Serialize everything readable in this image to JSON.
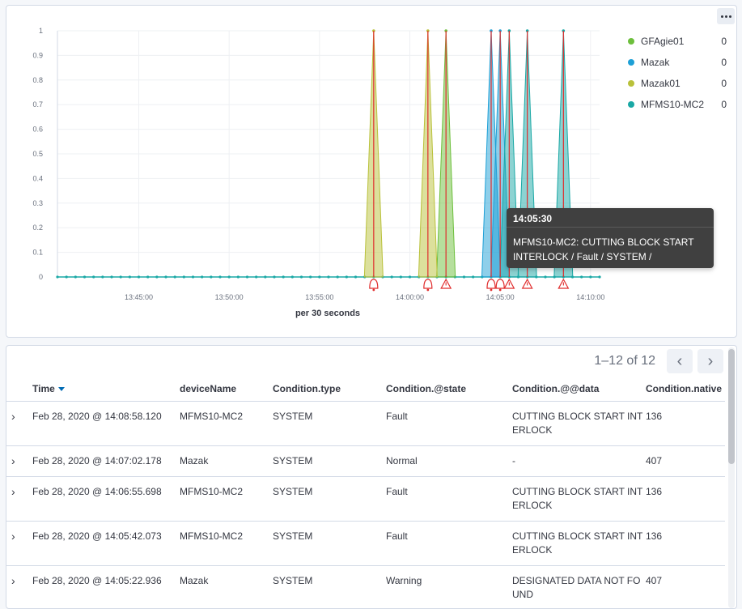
{
  "chart_data": {
    "type": "area",
    "xlabel": "per 30 seconds",
    "ylabel": "",
    "ylim": [
      0,
      1
    ],
    "y_ticks": [
      "1",
      "0.9",
      "0.8",
      "0.7",
      "0.6",
      "0.5",
      "0.4",
      "0.3",
      "0.2",
      "0.1",
      "0"
    ],
    "x_ticks": [
      "13:45:00",
      "13:50:00",
      "13:55:00",
      "14:00:00",
      "14:05:00",
      "14:10:00"
    ],
    "x_range": [
      "13:40:30",
      "14:10:30"
    ],
    "grid": true,
    "legend_placement": "right",
    "series": [
      {
        "name": "GFAgie01",
        "color": "#6dbf3c",
        "values": [
          {
            "x": "14:02:00",
            "y": 1
          }
        ]
      },
      {
        "name": "Mazak",
        "color": "#1ea0d6",
        "values": [
          {
            "x": "14:04:30",
            "y": 1
          },
          {
            "x": "14:05:00",
            "y": 1
          }
        ]
      },
      {
        "name": "Mazak01",
        "color": "#b9c13a",
        "values": [
          {
            "x": "13:58:00",
            "y": 1
          },
          {
            "x": "14:01:00",
            "y": 1
          }
        ]
      },
      {
        "name": "MFMS10-MC2",
        "color": "#1aa8a5",
        "values": [
          {
            "x": "14:05:30",
            "y": 1
          },
          {
            "x": "14:06:30",
            "y": 1
          },
          {
            "x": "14:08:30",
            "y": 1
          }
        ]
      }
    ],
    "annotations": [
      {
        "x": "13:58:00",
        "icon": "bell-icon",
        "color": "#e02c2c"
      },
      {
        "x": "14:01:00",
        "icon": "bell-icon",
        "color": "#e02c2c"
      },
      {
        "x": "14:02:00",
        "icon": "warning-icon",
        "color": "#e02c2c"
      },
      {
        "x": "14:04:30",
        "icon": "bell-icon",
        "color": "#e02c2c"
      },
      {
        "x": "14:05:00",
        "icon": "bell-icon",
        "color": "#e02c2c"
      },
      {
        "x": "14:05:30",
        "icon": "warning-icon",
        "color": "#e02c2c"
      },
      {
        "x": "14:06:30",
        "icon": "warning-icon",
        "color": "#e02c2c"
      },
      {
        "x": "14:08:30",
        "icon": "warning-icon",
        "color": "#e02c2c"
      }
    ]
  },
  "legend": [
    {
      "name": "GFAgie01",
      "value": "0",
      "color": "#6dbf3c"
    },
    {
      "name": "Mazak",
      "value": "0",
      "color": "#1ea0d6"
    },
    {
      "name": "Mazak01",
      "value": "0",
      "color": "#b9c13a"
    },
    {
      "name": "MFMS10-MC2",
      "value": "0",
      "color": "#1aa8a5"
    }
  ],
  "tooltip": {
    "time": "14:05:30",
    "line1": "MFMS10-MC2: CUTTING BLOCK START",
    "line2": "INTERLOCK / Fault / SYSTEM /"
  },
  "pager": {
    "text": "1–12 of 12",
    "prev_icon": "chevron-left-icon",
    "next_icon": "chevron-right-icon"
  },
  "table": {
    "columns": [
      "Time",
      "deviceName",
      "Condition.type",
      "Condition.@state",
      "Condition.@@data",
      "Condition.native"
    ],
    "sort_icon": "sort-desc-icon",
    "rows": [
      {
        "time": "Feb 28, 2020 @ 14:08:58.120",
        "device": "MFMS10-MC2",
        "type": "SYSTEM",
        "state": "Fault",
        "data": "CUTTING BLOCK START INTERLOCK",
        "native": "136"
      },
      {
        "time": "Feb 28, 2020 @ 14:07:02.178",
        "device": "Mazak",
        "type": "SYSTEM",
        "state": "Normal",
        "data": "-",
        "native": "407"
      },
      {
        "time": "Feb 28, 2020 @ 14:06:55.698",
        "device": "MFMS10-MC2",
        "type": "SYSTEM",
        "state": "Fault",
        "data": "CUTTING BLOCK START INTERLOCK",
        "native": "136"
      },
      {
        "time": "Feb 28, 2020 @ 14:05:42.073",
        "device": "MFMS10-MC2",
        "type": "SYSTEM",
        "state": "Fault",
        "data": "CUTTING BLOCK START INTERLOCK",
        "native": "136"
      },
      {
        "time": "Feb 28, 2020 @ 14:05:22.936",
        "device": "Mazak",
        "type": "SYSTEM",
        "state": "Warning",
        "data": "DESIGNATED DATA NOT FOUND",
        "native": "407"
      }
    ]
  }
}
